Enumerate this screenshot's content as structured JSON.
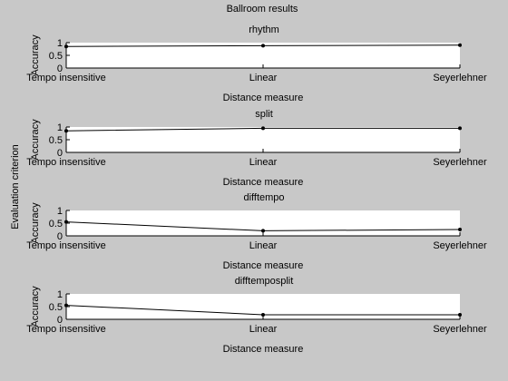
{
  "figure": {
    "title": "Ballroom results",
    "ylabel_outer": "Evaluation criterion",
    "background": "#c8c8c8",
    "axes_bg": "#ffffff",
    "line_color": "#000000"
  },
  "chart_data": [
    {
      "type": "line",
      "title": "rhythm",
      "categories": [
        "Tempo insensitive",
        "Linear",
        "Seyerlehner"
      ],
      "values": [
        0.85,
        0.88,
        0.9
      ],
      "xlabel": "Distance measure",
      "ylabel": "Accuracy",
      "ylim": [
        0,
        1
      ],
      "yticks": [
        "0",
        "0.5",
        "1"
      ],
      "grid": false
    },
    {
      "type": "line",
      "title": "split",
      "categories": [
        "Tempo insensitive",
        "Linear",
        "Seyerlehner"
      ],
      "values": [
        0.85,
        0.95,
        0.95
      ],
      "xlabel": "Distance measure",
      "ylabel": "Accuracy",
      "ylim": [
        0,
        1
      ],
      "yticks": [
        "0",
        "0.5",
        "1"
      ],
      "grid": false
    },
    {
      "type": "line",
      "title": "difftempo",
      "categories": [
        "Tempo insensitive",
        "Linear",
        "Seyerlehner"
      ],
      "values": [
        0.55,
        0.2,
        0.25
      ],
      "xlabel": "Distance measure",
      "ylabel": "Accuracy",
      "ylim": [
        0,
        1
      ],
      "yticks": [
        "0",
        "0.5",
        "1"
      ],
      "grid": false
    },
    {
      "type": "line",
      "title": "difftemposplit",
      "categories": [
        "Tempo insensitive",
        "Linear",
        "Seyerlehner"
      ],
      "values": [
        0.55,
        0.18,
        0.18
      ],
      "xlabel": "Distance measure",
      "ylabel": "Accuracy",
      "ylim": [
        0,
        1
      ],
      "yticks": [
        "0",
        "0.5",
        "1"
      ],
      "grid": false
    }
  ]
}
